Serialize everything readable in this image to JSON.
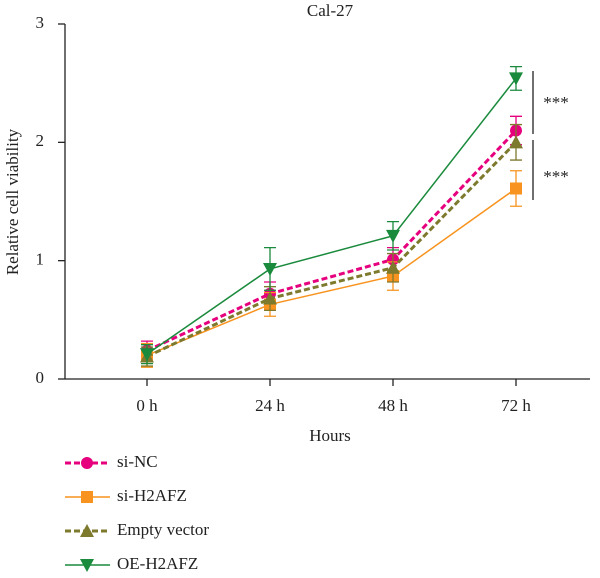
{
  "chart_data": {
    "type": "line",
    "title": "Cal-27",
    "xlabel": "Hours",
    "ylabel": "Relative cell viability",
    "categories": [
      "0 h",
      "24 h",
      "48 h",
      "72 h"
    ],
    "ylim": [
      0,
      3
    ],
    "yticks": [
      0,
      1,
      2,
      3
    ],
    "series": [
      {
        "name": "si-NC",
        "color": "#e6007e",
        "dashed": true,
        "marker": "circle",
        "values": [
          0.24,
          0.72,
          1.01,
          2.1
        ],
        "errors": [
          0.08,
          0.1,
          0.1,
          0.12
        ]
      },
      {
        "name": "si-H2AFZ",
        "color": "#f7931e",
        "dashed": false,
        "marker": "square",
        "values": [
          0.2,
          0.63,
          0.87,
          1.61
        ],
        "errors": [
          0.1,
          0.1,
          0.12,
          0.15
        ]
      },
      {
        "name": "Empty vector",
        "color": "#7d7a2e",
        "dashed": true,
        "marker": "triangle-up",
        "values": [
          0.19,
          0.68,
          0.94,
          2.0
        ],
        "errors": [
          0.08,
          0.1,
          0.12,
          0.15
        ]
      },
      {
        "name": "OE-H2AFZ",
        "color": "#1a8a3c",
        "dashed": false,
        "marker": "triangle-down",
        "values": [
          0.21,
          0.93,
          1.21,
          2.54
        ],
        "errors": [
          0.08,
          0.18,
          0.12,
          0.1
        ]
      }
    ],
    "annotations": [
      "***",
      "***"
    ]
  }
}
